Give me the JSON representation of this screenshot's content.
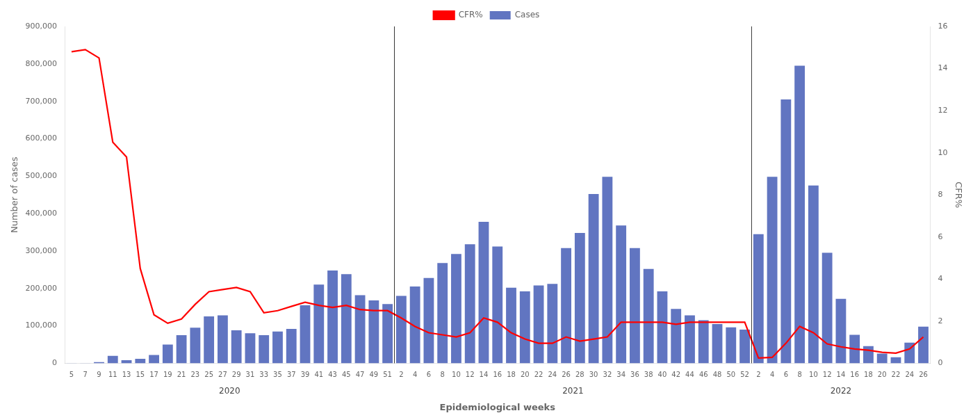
{
  "chart_data": {
    "type": "bar",
    "xlabel": "Epidemiological weeks",
    "ylabel": "Number of cases",
    "y2label": "CFR%",
    "annotations": [
      "2020",
      "2021",
      "2022"
    ],
    "categories": [
      "5",
      "7",
      "9",
      "11",
      "13",
      "15",
      "17",
      "19",
      "21",
      "23",
      "25",
      "27",
      "29",
      "31",
      "33",
      "35",
      "37",
      "39",
      "41",
      "43",
      "45",
      "47",
      "49",
      "51",
      "2",
      "4",
      "6",
      "8",
      "10",
      "12",
      "14",
      "16",
      "18",
      "20",
      "22",
      "24",
      "26",
      "28",
      "30",
      "32",
      "34",
      "36",
      "38",
      "40",
      "42",
      "44",
      "46",
      "48",
      "50",
      "52",
      "2",
      "4",
      "6",
      "8",
      "10",
      "12",
      "14",
      "16",
      "18",
      "20",
      "22",
      "24",
      "26"
    ],
    "series": [
      {
        "name": "Cases",
        "type": "bar",
        "color": "#6175C1",
        "values": [
          200,
          500,
          3000,
          20000,
          8000,
          12000,
          22000,
          50000,
          75000,
          95000,
          125000,
          128000,
          88000,
          80000,
          75000,
          85000,
          92000,
          155000,
          210000,
          248000,
          238000,
          182000,
          168000,
          158000,
          180000,
          205000,
          228000,
          268000,
          292000,
          318000,
          378000,
          312000,
          202000,
          192000,
          208000,
          212000,
          308000,
          348000,
          452000,
          498000,
          368000,
          308000,
          252000,
          192000,
          145000,
          128000,
          115000,
          105000,
          96000,
          90000,
          345000,
          498000,
          705000,
          795000,
          475000,
          295000,
          172000,
          76000,
          46000,
          26000,
          16000,
          55000,
          98000
        ]
      },
      {
        "name": "CFR%",
        "type": "line",
        "axis": "y2",
        "color": "#FF0000",
        "values": [
          14.8,
          14.9,
          14.5,
          10.5,
          9.8,
          4.5,
          2.3,
          1.9,
          2.1,
          2.8,
          3.4,
          3.5,
          3.6,
          3.4,
          2.4,
          2.5,
          2.7,
          2.9,
          2.75,
          2.65,
          2.75,
          2.55,
          2.5,
          2.5,
          2.15,
          1.75,
          1.45,
          1.35,
          1.25,
          1.45,
          2.15,
          1.95,
          1.45,
          1.15,
          0.95,
          0.95,
          1.25,
          1.05,
          1.15,
          1.25,
          1.95,
          1.95,
          1.95,
          1.95,
          1.85,
          1.95,
          1.95,
          1.95,
          1.95,
          1.95,
          0.25,
          0.28,
          0.95,
          1.75,
          1.45,
          0.92,
          0.78,
          0.68,
          0.62,
          0.52,
          0.48,
          0.68,
          1.25
        ]
      }
    ],
    "ylim": [
      0,
      900000
    ],
    "yticks": [
      0,
      {
        "value": 100000,
        "label": "100,000"
      },
      {
        "value": 200000,
        "label": "200,000"
      },
      {
        "value": 300000,
        "label": "300,000"
      },
      {
        "value": 400000,
        "label": "400,000"
      },
      {
        "value": 500000,
        "label": "500,000"
      },
      {
        "value": 600000,
        "label": "600,000"
      },
      {
        "value": 700000,
        "label": "700,000"
      },
      {
        "value": 800000,
        "label": "800,000"
      },
      {
        "value": 900000,
        "label": "900,000"
      }
    ],
    "y2lim": [
      0,
      16
    ],
    "y2ticks": [
      0,
      2,
      4,
      6,
      8,
      10,
      12,
      14,
      16
    ],
    "grid": false,
    "legend": "upper center"
  }
}
